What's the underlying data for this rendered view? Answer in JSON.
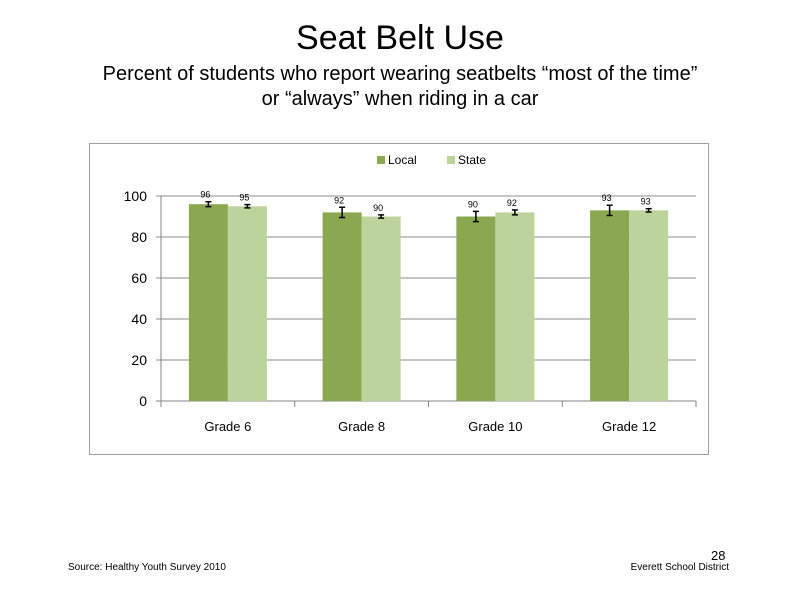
{
  "slide": {
    "title": "Seat Belt Use",
    "subtitle_line1": "Percent of students who report wearing seatbelts “most of the time”",
    "subtitle_line2": "or “always” when riding in a car",
    "source": "Source: Healthy Youth Survey 2010",
    "page_number": "28",
    "organization": "Everett School District"
  },
  "chart_data": {
    "type": "bar",
    "title": "",
    "xlabel": "",
    "ylabel": "",
    "categories": [
      "Grade 6",
      "Grade 8",
      "Grade 10",
      "Grade 12"
    ],
    "series": [
      {
        "name": "Local",
        "color": "#8aa84f",
        "values": [
          96,
          92,
          90,
          93
        ],
        "labels": [
          "96",
          "92",
          "90",
          "93"
        ],
        "error": [
          1.2,
          2.5,
          2.5,
          2.5
        ]
      },
      {
        "name": "State",
        "color": "#bcd39c",
        "values": [
          95,
          90,
          92,
          93
        ],
        "labels": [
          "95",
          "90",
          "92",
          "93"
        ],
        "error": [
          0.8,
          0.8,
          1.2,
          0.8
        ]
      }
    ],
    "ylim": [
      0,
      100
    ],
    "yticks": [
      "0",
      "20",
      "40",
      "60",
      "80",
      "100"
    ],
    "grid": true,
    "legend_position": "top-center",
    "error_bars": true
  }
}
